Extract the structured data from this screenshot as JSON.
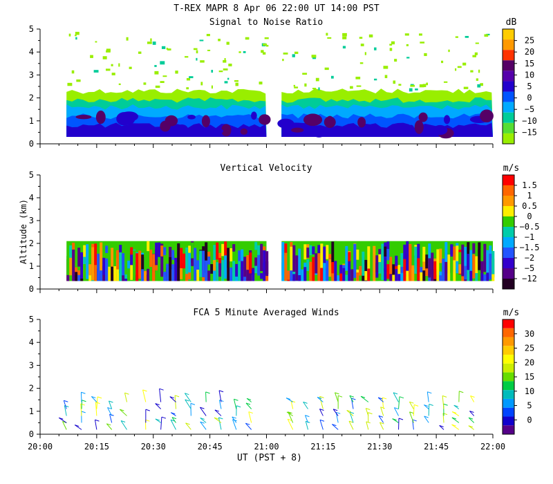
{
  "header": {
    "title": "T-REX  MAPR  8 Apr 06  22:00 UT  14:00  PST",
    "xlabel": "UT  (PST + 8)",
    "ylabel": "Altitude (km)"
  },
  "chart_data": [
    {
      "type": "heatmap",
      "title": "Signal to Noise Ratio",
      "ylim": [
        0,
        5
      ],
      "yticks": [
        "0",
        "1",
        "2",
        "3",
        "4",
        "5"
      ],
      "colorbar_unit": "dB",
      "colorbar_labels": [
        "25",
        "20",
        "15",
        "10",
        "5",
        "0",
        "−5",
        "−10",
        "−15"
      ],
      "colors": [
        "#ffcc00",
        "#ff9900",
        "#ff3300",
        "#550066",
        "#5500aa",
        "#2200cc",
        "#0055ff",
        "#00aaff",
        "#00cc99",
        "#55dd33",
        "#99ee00"
      ],
      "data_ranges_utc": [
        [
          "20:07",
          "21:00"
        ],
        [
          "21:04",
          "22:00"
        ]
      ],
      "layers": [
        {
          "top_km": 2.3,
          "color": "#99ee00"
        },
        {
          "top_km": 1.9,
          "color": "#00cc99"
        },
        {
          "top_km": 1.6,
          "color": "#00aaff"
        },
        {
          "top_km": 1.2,
          "color": "#0055ff"
        },
        {
          "top_km": 0.8,
          "color": "#2200cc"
        }
      ]
    },
    {
      "type": "heatmap",
      "title": "Vertical Velocity",
      "ylim": [
        0,
        5
      ],
      "yticks": [
        "0",
        "1",
        "2",
        "3",
        "4",
        "5"
      ],
      "colorbar_unit": "m/s",
      "colorbar_labels": [
        "1.5",
        "1",
        "0.5",
        "0",
        "−0.5",
        "−1",
        "−1.5",
        "−2",
        "−5",
        "−12"
      ],
      "colors": [
        "#ff0000",
        "#ff6600",
        "#ff9900",
        "#ffee00",
        "#33cc00",
        "#00ccaa",
        "#00aaff",
        "#2255ff",
        "#3300cc",
        "#550088",
        "#220022"
      ],
      "data_ranges_utc": [
        [
          "20:07",
          "21:00"
        ],
        [
          "21:04",
          "22:00"
        ]
      ],
      "top_km": 2.1
    },
    {
      "type": "scatter",
      "title": "FCA 5 Minute Averaged Winds",
      "ylim": [
        0,
        5
      ],
      "yticks": [
        "0",
        "1",
        "2",
        "3",
        "4",
        "5"
      ],
      "colorbar_unit": "m/s",
      "colorbar_labels": [
        "30",
        "25",
        "20",
        "15",
        "10",
        "5",
        "0"
      ],
      "colors": [
        "#ff0000",
        "#ff6600",
        "#ff9900",
        "#ffcc00",
        "#ffff00",
        "#ccee00",
        "#66dd00",
        "#00cc44",
        "#00bbbb",
        "#0099ff",
        "#0044ff",
        "#1100cc",
        "#550088"
      ],
      "barb_times_utc": [
        "20:07",
        "20:11",
        "20:15",
        "20:19",
        "20:23",
        "20:28",
        "20:32",
        "20:36",
        "20:40",
        "20:44",
        "20:48",
        "20:52",
        "20:56",
        "21:07",
        "21:11",
        "21:15",
        "21:19",
        "21:23",
        "21:27",
        "21:31",
        "21:35",
        "21:39",
        "21:43",
        "21:47",
        "21:51",
        "21:55"
      ],
      "barb_altitudes_km": [
        0.2,
        0.5,
        0.8,
        1.1,
        1.4
      ]
    }
  ],
  "x_axis": {
    "range_utc": [
      "20:00",
      "22:00"
    ],
    "tick_labels": [
      "20:00",
      "20:15",
      "20:30",
      "20:45",
      "21:00",
      "21:15",
      "21:30",
      "21:45",
      "22:00"
    ]
  }
}
